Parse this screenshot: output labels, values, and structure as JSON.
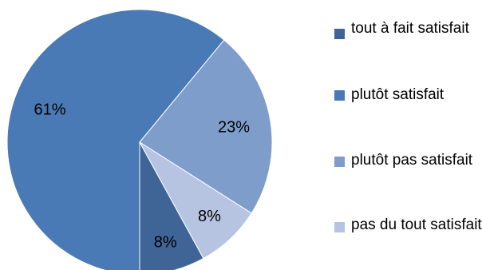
{
  "chart_data": {
    "type": "pie",
    "categories": [
      "tout à fait satisfait",
      "plutôt satisfait",
      "plutôt pas satisfait",
      "pas du tout satisfait"
    ],
    "values": [
      8,
      61,
      23,
      8
    ],
    "value_labels": [
      "8%",
      "61%",
      "23%",
      "8%"
    ],
    "colors": [
      "#3f6496",
      "#4a7ab5",
      "#7f9dcb",
      "#b6c4e2"
    ],
    "legend_position": "right",
    "title": ""
  }
}
